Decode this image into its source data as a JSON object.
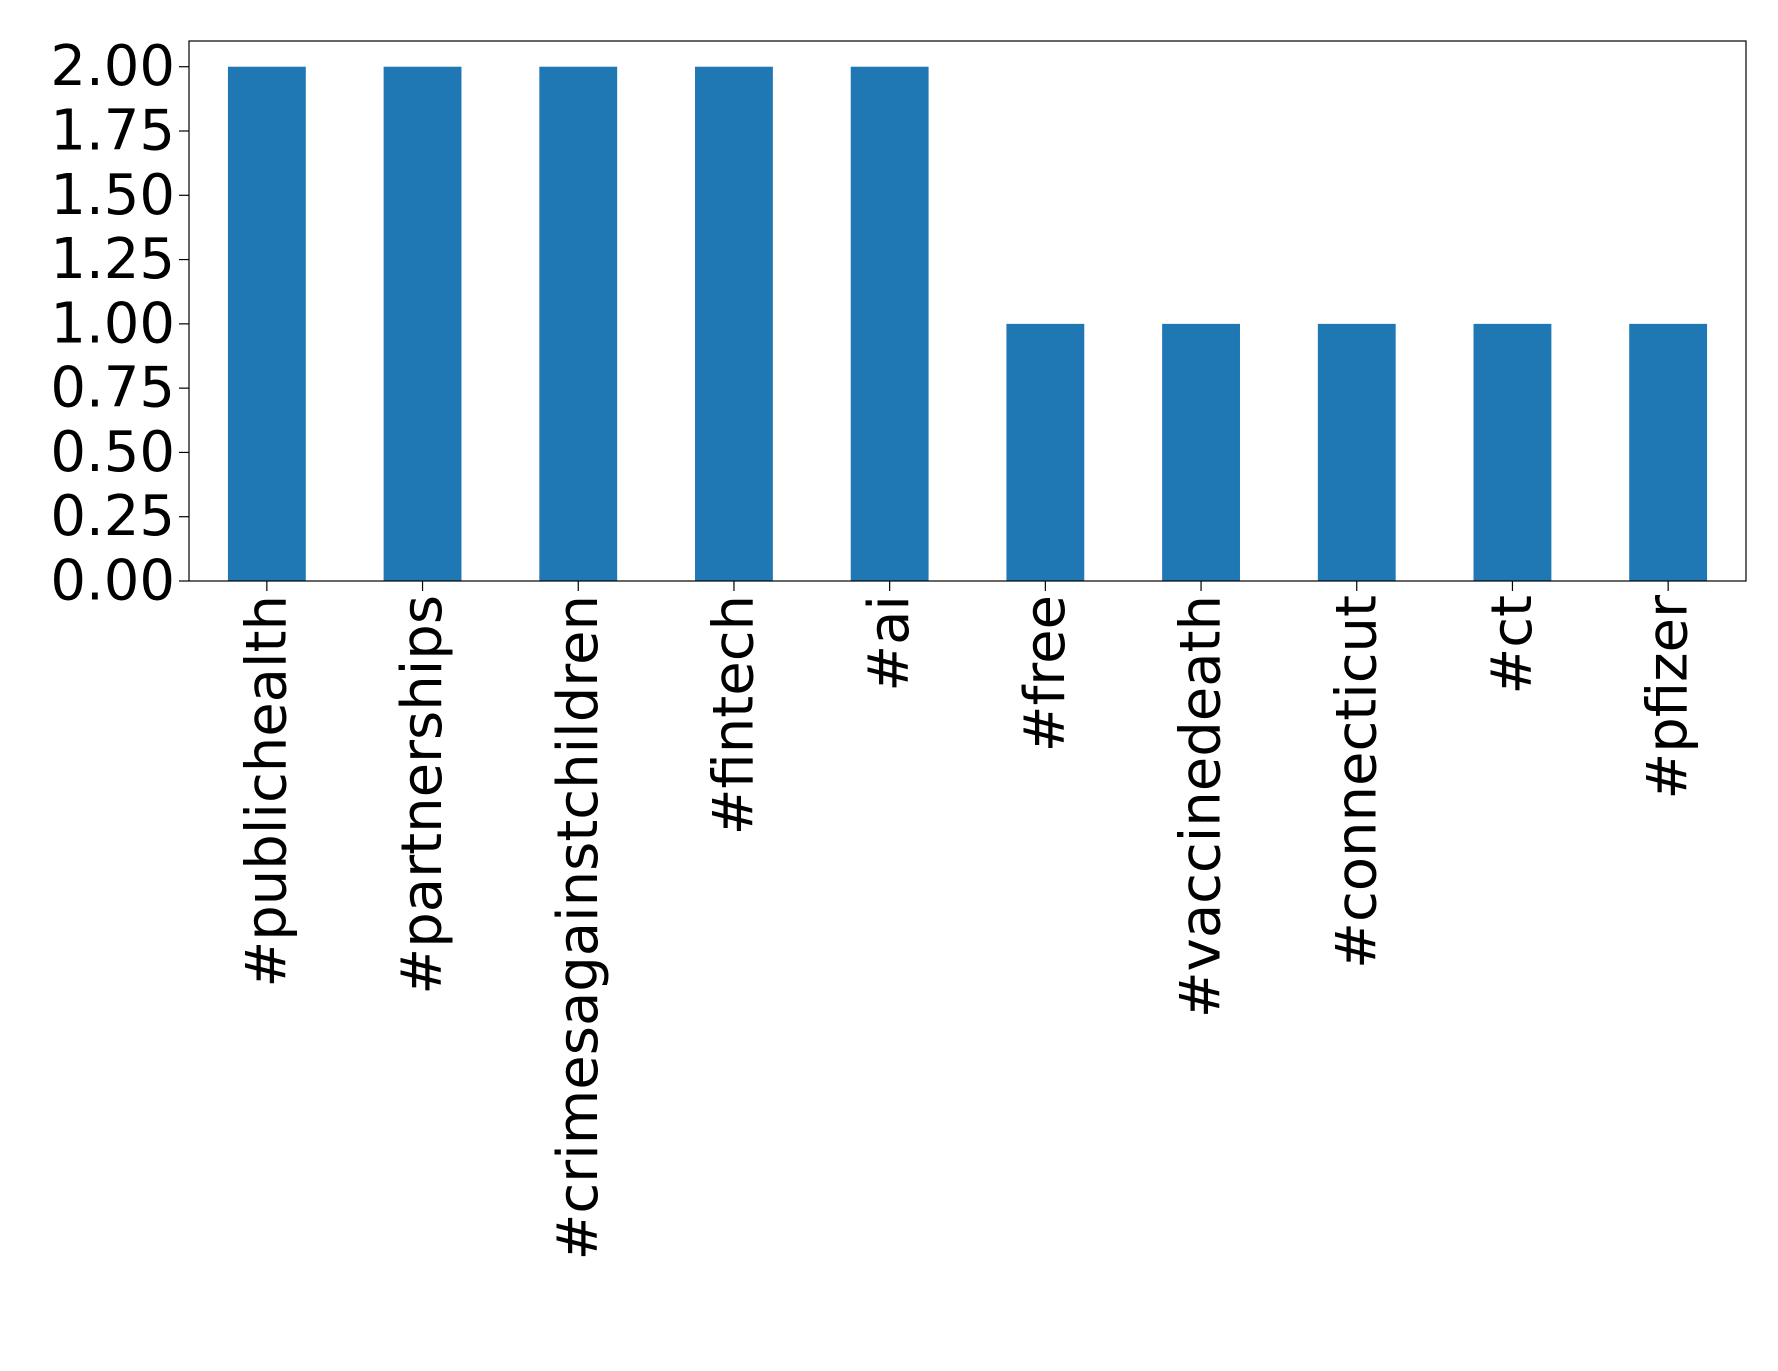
{
  "chart_data": {
    "type": "bar",
    "title": "",
    "xlabel": "",
    "ylabel": "",
    "categories": [
      "#publichealth",
      "#partnerships",
      "#crimesagainstchildren",
      "#fintech",
      "#ai",
      "#free",
      "#vaccinedeath",
      "#connecticut",
      "#ct",
      "#pfizer"
    ],
    "values": [
      2,
      2,
      2,
      2,
      2,
      1,
      1,
      1,
      1,
      1
    ],
    "ylim": [
      0,
      2.1
    ],
    "yticks": [
      "0.00",
      "0.25",
      "0.50",
      "0.75",
      "1.00",
      "1.25",
      "1.50",
      "1.75",
      "2.00"
    ],
    "grid": false,
    "legend": "none",
    "bar_color": "#1f77b4"
  }
}
